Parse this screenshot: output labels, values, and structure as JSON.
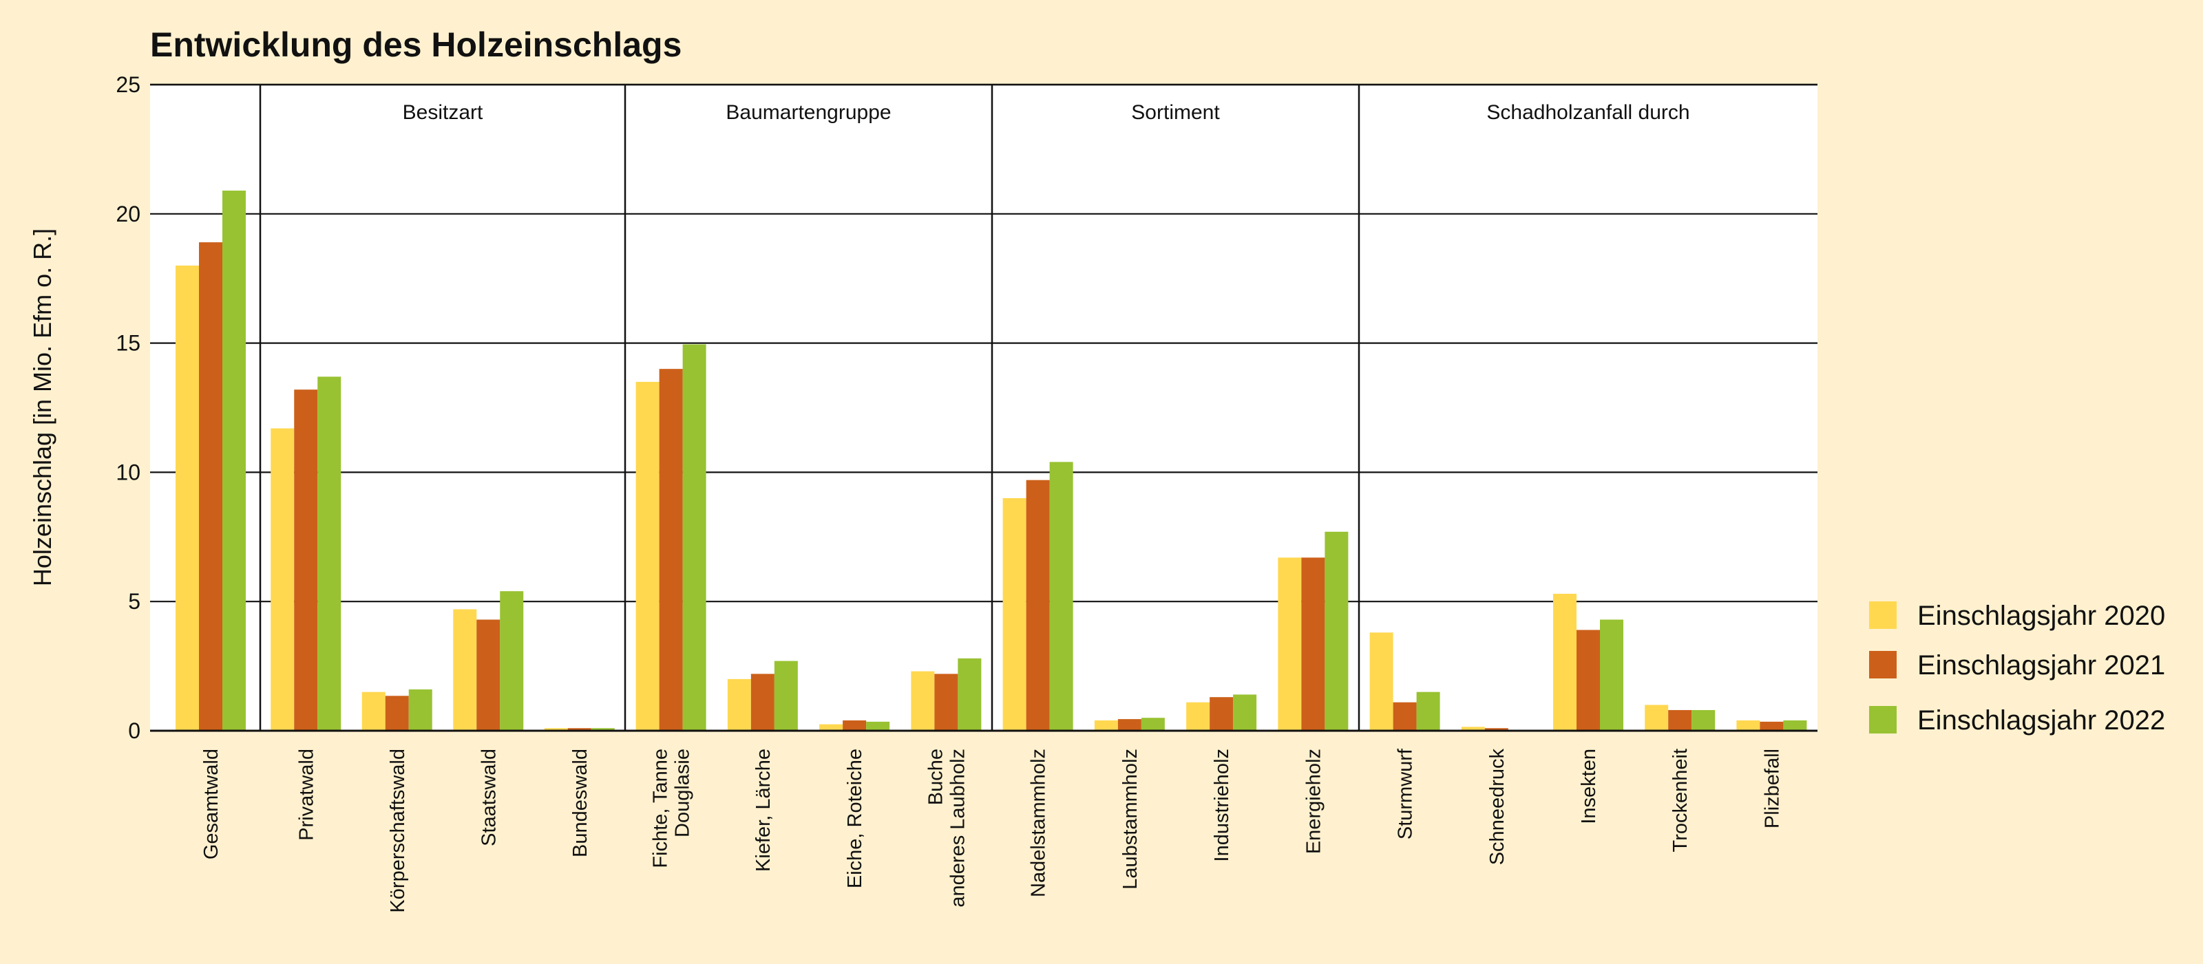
{
  "chart_data": {
    "type": "bar",
    "title": "Entwicklung des Holzeinschlags",
    "xlabel": "",
    "ylabel": "Holzeinschlag [in Mio. Efm o. R.]",
    "ylim": [
      0,
      25
    ],
    "yticks": [
      0,
      5,
      10,
      15,
      20,
      25
    ],
    "grid": true,
    "legend_position": "right",
    "sections": [
      {
        "label": "",
        "categories": [
          "Gesamtwald"
        ]
      },
      {
        "label": "Besitzart",
        "categories": [
          "Privatwald",
          "Körperschaftswald",
          "Staatswald",
          "Bundeswald"
        ]
      },
      {
        "label": "Baumartengruppe",
        "categories": [
          "Fichte, Tanne\nDouglasie",
          "Kiefer, Lärche",
          "Eiche, Roteiche",
          "Buche\nanderes Laubholz"
        ]
      },
      {
        "label": "Sortiment",
        "categories": [
          "Nadelstammholz",
          "Laubstammholz",
          "Industrieholz",
          "Energieholz"
        ]
      },
      {
        "label": "Schadholzanfall durch",
        "categories": [
          "Sturmwurf",
          "Schneedruck",
          "Insekten",
          "Trockenheit",
          "Plizbefall"
        ]
      }
    ],
    "categories": [
      "Gesamtwald",
      "Privatwald",
      "Körperschaftswald",
      "Staatswald",
      "Bundeswald",
      "Fichte, Tanne\nDouglasie",
      "Kiefer, Lärche",
      "Eiche, Roteiche",
      "Buche\nanderes Laubholz",
      "Nadelstammholz",
      "Laubstammholz",
      "Industrieholz",
      "Energieholz",
      "Sturmwurf",
      "Schneedruck",
      "Insekten",
      "Trockenheit",
      "Plizbefall"
    ],
    "series": [
      {
        "name": "Einschlagsjahr 2020",
        "color": "#FFD850",
        "values": [
          18.0,
          11.7,
          1.5,
          4.7,
          0.1,
          13.5,
          2.0,
          0.25,
          2.3,
          9.0,
          0.4,
          1.1,
          6.7,
          3.8,
          0.15,
          5.3,
          1.0,
          0.4
        ]
      },
      {
        "name": "Einschlagsjahr 2021",
        "color": "#CC601A",
        "values": [
          18.9,
          13.2,
          1.35,
          4.3,
          0.1,
          14.0,
          2.2,
          0.4,
          2.2,
          9.7,
          0.45,
          1.3,
          6.7,
          1.1,
          0.1,
          3.9,
          0.8,
          0.35
        ]
      },
      {
        "name": "Einschlagsjahr 2022",
        "color": "#98C232",
        "values": [
          20.9,
          13.7,
          1.6,
          5.4,
          0.1,
          14.95,
          2.7,
          0.35,
          2.8,
          10.4,
          0.5,
          1.4,
          7.7,
          1.5,
          0.03,
          4.3,
          0.8,
          0.4
        ]
      }
    ]
  }
}
